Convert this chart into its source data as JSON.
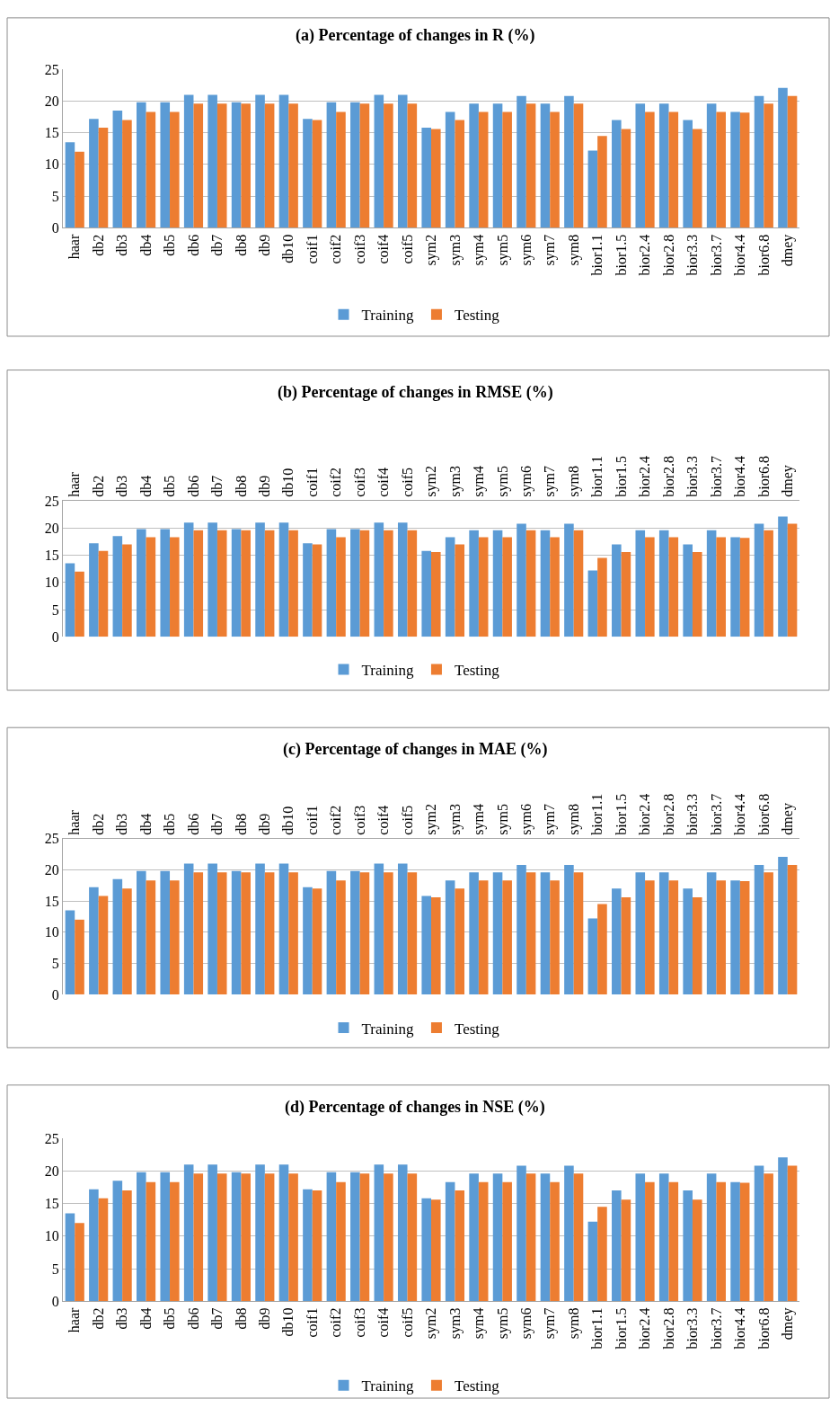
{
  "chart_data": [
    {
      "type": "bar",
      "title": "(a) Percentage of changes in R (%)",
      "categories": [
        "haar",
        "db2",
        "db3",
        "db4",
        "db5",
        "db6",
        "db7",
        "db8",
        "db9",
        "db10",
        "coif1",
        "coif2",
        "coif3",
        "coif4",
        "coif5",
        "sym2",
        "sym3",
        "sym4",
        "sym5",
        "sym6",
        "sym7",
        "sym8",
        "bior1.1",
        "bior1.5",
        "bior2.4",
        "bior2.8",
        "bior3.3",
        "bior3.7",
        "bior4.4",
        "bior6.8",
        "dmey"
      ],
      "series": [
        {
          "name": "Training",
          "color": "#5b9bd5",
          "values": [
            13.5,
            17.2,
            18.5,
            19.8,
            19.8,
            21,
            21,
            19.8,
            21,
            21,
            17.2,
            19.8,
            19.8,
            21,
            21,
            15.8,
            18.3,
            19.6,
            19.6,
            20.8,
            19.6,
            20.8,
            12.2,
            17,
            19.6,
            19.6,
            17,
            19.6,
            18.3,
            20.8,
            22.1
          ]
        },
        {
          "name": "Testing",
          "color": "#ed7d31",
          "values": [
            12,
            15.8,
            17,
            18.3,
            18.3,
            19.6,
            19.6,
            19.6,
            19.6,
            19.6,
            17,
            18.3,
            19.6,
            19.6,
            19.6,
            15.6,
            17,
            18.3,
            18.3,
            19.6,
            18.3,
            19.6,
            14.5,
            15.6,
            18.3,
            18.3,
            15.6,
            18.3,
            18.2,
            19.6,
            20.8
          ]
        }
      ],
      "ylim": [
        0,
        25
      ],
      "yticks": [
        0,
        5,
        10,
        15,
        20,
        25
      ],
      "grid": "y",
      "legend": "bottom"
    },
    {
      "type": "bar",
      "title": "(b) Percentage of changes in RMSE (%)",
      "categories": [
        "haar",
        "db2",
        "db3",
        "db4",
        "db5",
        "db6",
        "db7",
        "db8",
        "db9",
        "db10",
        "coif1",
        "coif2",
        "coif3",
        "coif4",
        "coif5",
        "sym2",
        "sym3",
        "sym4",
        "sym5",
        "sym6",
        "sym7",
        "sym8",
        "bior1.1",
        "bior1.5",
        "bior2.4",
        "bior2.8",
        "bior3.3",
        "bior3.7",
        "bior4.4",
        "bior6.8",
        "dmey"
      ],
      "series": [
        {
          "name": "Training",
          "color": "#5b9bd5",
          "values": [
            13.5,
            17.2,
            18.5,
            19.8,
            19.8,
            21,
            21,
            19.8,
            21,
            21,
            17.2,
            19.8,
            19.8,
            21,
            21,
            15.8,
            18.3,
            19.6,
            19.6,
            20.8,
            19.6,
            20.8,
            12.2,
            17,
            19.6,
            19.6,
            17,
            19.6,
            18.3,
            20.8,
            22.1
          ]
        },
        {
          "name": "Testing",
          "color": "#ed7d31",
          "values": [
            12,
            15.8,
            17,
            18.3,
            18.3,
            19.6,
            19.6,
            19.6,
            19.6,
            19.6,
            17,
            18.3,
            19.6,
            19.6,
            19.6,
            15.6,
            17,
            18.3,
            18.3,
            19.6,
            18.3,
            19.6,
            14.5,
            15.6,
            18.3,
            18.3,
            15.6,
            18.3,
            18.2,
            19.6,
            20.8
          ]
        }
      ],
      "ylim": [
        0,
        25
      ],
      "yticks": [
        0,
        5,
        10,
        15,
        20,
        25
      ],
      "grid": "y",
      "legend": "bottom"
    },
    {
      "type": "bar",
      "title": "(c) Percentage of changes in MAE (%)",
      "categories": [
        "haar",
        "db2",
        "db3",
        "db4",
        "db5",
        "db6",
        "db7",
        "db8",
        "db9",
        "db10",
        "coif1",
        "coif2",
        "coif3",
        "coif4",
        "coif5",
        "sym2",
        "sym3",
        "sym4",
        "sym5",
        "sym6",
        "sym7",
        "sym8",
        "bior1.1",
        "bior1.5",
        "bior2.4",
        "bior2.8",
        "bior3.3",
        "bior3.7",
        "bior4.4",
        "bior6.8",
        "dmey"
      ],
      "series": [
        {
          "name": "Training",
          "color": "#5b9bd5",
          "values": [
            13.5,
            17.2,
            18.5,
            19.8,
            19.8,
            21,
            21,
            19.8,
            21,
            21,
            17.2,
            19.8,
            19.8,
            21,
            21,
            15.8,
            18.3,
            19.6,
            19.6,
            20.8,
            19.6,
            20.8,
            12.2,
            17,
            19.6,
            19.6,
            17,
            19.6,
            18.3,
            20.8,
            22.1
          ]
        },
        {
          "name": "Testing",
          "color": "#ed7d31",
          "values": [
            12,
            15.8,
            17,
            18.3,
            18.3,
            19.6,
            19.6,
            19.6,
            19.6,
            19.6,
            17,
            18.3,
            19.6,
            19.6,
            19.6,
            15.6,
            17,
            18.3,
            18.3,
            19.6,
            18.3,
            19.6,
            14.5,
            15.6,
            18.3,
            18.3,
            15.6,
            18.3,
            18.2,
            19.6,
            20.8
          ]
        }
      ],
      "ylim": [
        0,
        25
      ],
      "yticks": [
        0,
        5,
        10,
        15,
        20,
        25
      ],
      "grid": "y",
      "legend": "bottom"
    },
    {
      "type": "bar",
      "title": "(d) Percentage of changes in NSE (%)",
      "categories": [
        "haar",
        "db2",
        "db3",
        "db4",
        "db5",
        "db6",
        "db7",
        "db8",
        "db9",
        "db10",
        "coif1",
        "coif2",
        "coif3",
        "coif4",
        "coif5",
        "sym2",
        "sym3",
        "sym4",
        "sym5",
        "sym6",
        "sym7",
        "sym8",
        "bior1.1",
        "bior1.5",
        "bior2.4",
        "bior2.8",
        "bior3.3",
        "bior3.7",
        "bior4.4",
        "bior6.8",
        "dmey"
      ],
      "series": [
        {
          "name": "Training",
          "color": "#5b9bd5",
          "values": [
            13.5,
            17.2,
            18.5,
            19.8,
            19.8,
            21,
            21,
            19.8,
            21,
            21,
            17.2,
            19.8,
            19.8,
            21,
            21,
            15.8,
            18.3,
            19.6,
            19.6,
            20.8,
            19.6,
            20.8,
            12.2,
            17,
            19.6,
            19.6,
            17,
            19.6,
            18.3,
            20.8,
            22.1
          ]
        },
        {
          "name": "Testing",
          "color": "#ed7d31",
          "values": [
            12,
            15.8,
            17,
            18.3,
            18.3,
            19.6,
            19.6,
            19.6,
            19.6,
            19.6,
            17,
            18.3,
            19.6,
            19.6,
            19.6,
            15.6,
            17,
            18.3,
            18.3,
            19.6,
            18.3,
            19.6,
            14.5,
            15.6,
            18.3,
            18.3,
            15.6,
            18.3,
            18.2,
            19.6,
            20.8
          ]
        }
      ],
      "ylim": [
        0,
        25
      ],
      "yticks": [
        0,
        5,
        10,
        15,
        20,
        25
      ],
      "grid": "y",
      "legend": "bottom"
    }
  ]
}
